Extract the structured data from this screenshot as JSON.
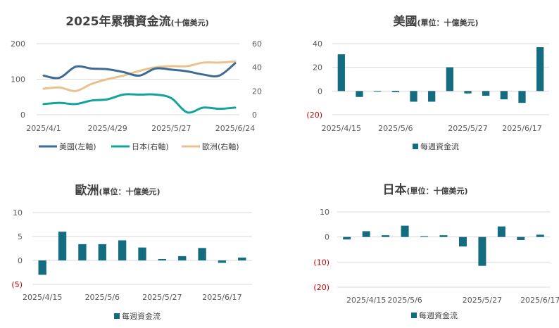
{
  "colors": {
    "us": "#3e6a96",
    "jp": "#13a39c",
    "eu": "#e8c38e",
    "bar": "#146c80",
    "negative_tick": "#c00000",
    "grid": "#d9d9d9"
  },
  "chart_data": [
    {
      "id": "cumulative",
      "type": "line",
      "title": "2025年累積資金流",
      "unit_text": "(十億美元)",
      "x_ticks": [
        "2025/4/1",
        "2025/4/29",
        "2025/5/27",
        "2025/6/24"
      ],
      "x": [
        "2025/4/1",
        "2025/4/8",
        "2025/4/15",
        "2025/4/22",
        "2025/4/29",
        "2025/5/6",
        "2025/5/13",
        "2025/5/20",
        "2025/5/27",
        "2025/6/3",
        "2025/6/10",
        "2025/6/17",
        "2025/6/24"
      ],
      "y_left": {
        "ticks": [
          "0",
          "100",
          "200"
        ],
        "ylim": [
          0,
          200
        ]
      },
      "y_right": {
        "ticks": [
          "0",
          "20",
          "40",
          "60"
        ],
        "ylim": [
          0,
          60
        ]
      },
      "series": [
        {
          "name": "美國(左軸)",
          "axis": "left",
          "color_key": "us",
          "values": [
            110,
            104,
            135,
            130,
            128,
            120,
            110,
            130,
            127,
            122,
            113,
            110,
            145
          ]
        },
        {
          "name": "日本(右軸)",
          "axis": "right",
          "color_key": "jp",
          "values": [
            9,
            10,
            9,
            12,
            13,
            17,
            17,
            17,
            14,
            2,
            6,
            5,
            6
          ]
        },
        {
          "name": "歐洲(右軸)",
          "axis": "right",
          "color_key": "eu",
          "values": [
            22,
            23,
            20,
            26,
            30,
            33,
            37,
            40,
            41,
            41,
            44,
            44,
            45
          ]
        }
      ]
    },
    {
      "id": "us",
      "type": "bar",
      "title": "美國",
      "unit_text": "(單位：十億美元)",
      "x_ticks": [
        "2025/4/15",
        "2025/5/6",
        "2025/5/27",
        "2025/6/17"
      ],
      "y_ticks": [
        "40",
        "20",
        "0",
        "(20)"
      ],
      "ylim": [
        -20,
        40
      ],
      "legend": "每週資金流",
      "values": [
        31,
        -5,
        0,
        -1,
        -9,
        -9,
        20,
        -2,
        -4,
        -7,
        -10,
        37
      ]
    },
    {
      "id": "eu",
      "type": "bar",
      "title": "歐洲",
      "unit_text": "(單位：十億美元)",
      "x_ticks": [
        "2025/4/15",
        "2025/5/6",
        "2025/5/27",
        "2025/6/17"
      ],
      "y_ticks": [
        "10",
        "5",
        "0",
        "(5)"
      ],
      "ylim": [
        -5,
        10
      ],
      "legend": "每週資金流",
      "values": [
        -3,
        6,
        3.4,
        3.4,
        4.2,
        2.7,
        0.3,
        0.9,
        2.6,
        -0.5,
        0.6
      ]
    },
    {
      "id": "jp",
      "type": "bar",
      "title": "日本",
      "unit_text": "(單位：十億美元)",
      "x_ticks": [
        "2025/4/15",
        "2025/5/6",
        "2025/5/27",
        "2025/6/17"
      ],
      "y_ticks": [
        "10",
        "0",
        "(10)",
        "(20)"
      ],
      "ylim": [
        -20,
        10
      ],
      "legend": "每週資金流",
      "values": [
        -1,
        2.3,
        0.7,
        4.5,
        0.3,
        0.7,
        -3.8,
        -11.5,
        4.2,
        -1.2,
        0.9
      ]
    }
  ]
}
